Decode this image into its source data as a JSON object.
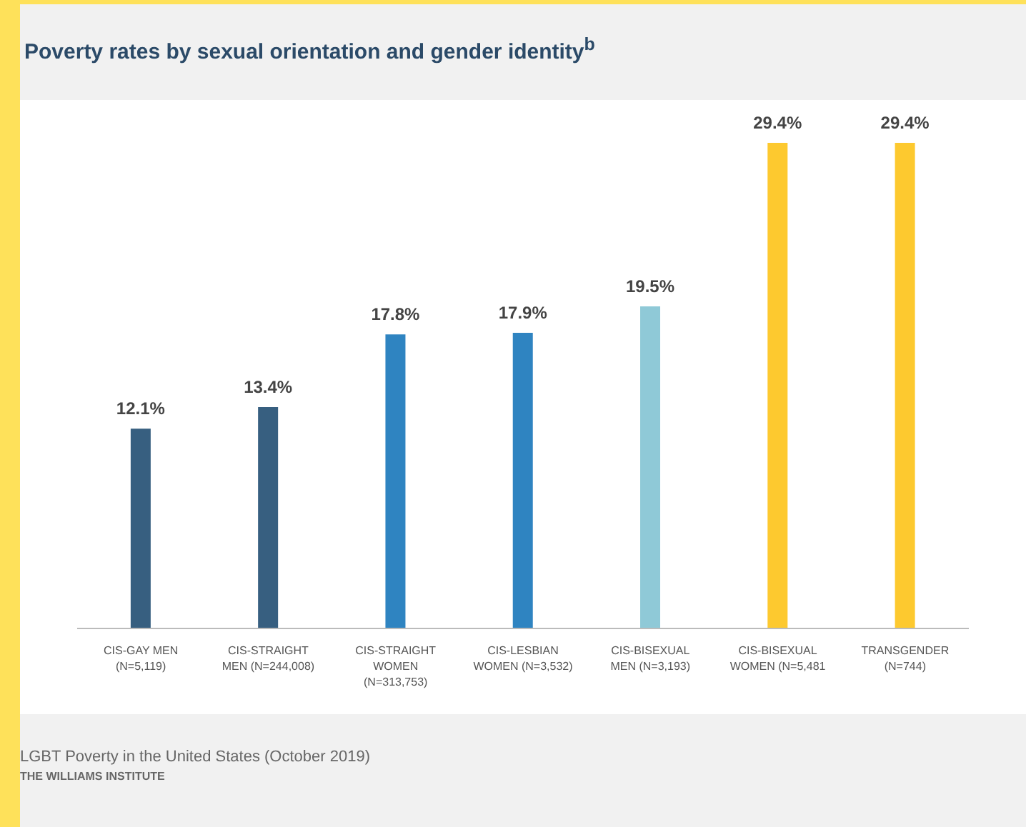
{
  "chart_data": {
    "type": "bar",
    "title": "Poverty rates by sexual orientation and gender identity$^{b}$",
    "categories": [
      "CIS-GAY MEN\n(N=5,119)",
      "CIS-STRAIGHT\nMEN (N=244,008)",
      "CIS-STRAIGHT\nWOMEN\n(N=313,753)",
      "CIS-LESBIAN\nWOMEN (N=3,532)",
      "CIS-BISEXUAL\nMEN (N=3,193)",
      "CIS-BISEXUAL\nWOMEN (N=5,481",
      "TRANSGENDER\n(N=744)"
    ],
    "values": [
      12.1,
      13.4,
      17.8,
      17.9,
      19.5,
      29.4,
      29.4
    ],
    "value_labels": [
      "12.1%",
      "13.4%",
      "17.8%",
      "17.9%",
      "19.5%",
      "29.4%",
      "29.4%"
    ],
    "colors": [
      "#375f80",
      "#375f80",
      "#2f84c1",
      "#2f84c1",
      "#8fc9d7",
      "#fdc92f",
      "#fdc92f"
    ],
    "grid": false,
    "legend": false,
    "annotations": [
      "LGBT Poverty in the United States (October 2019)",
      "THE WILLIAMS INSTITUTE"
    ]
  }
}
